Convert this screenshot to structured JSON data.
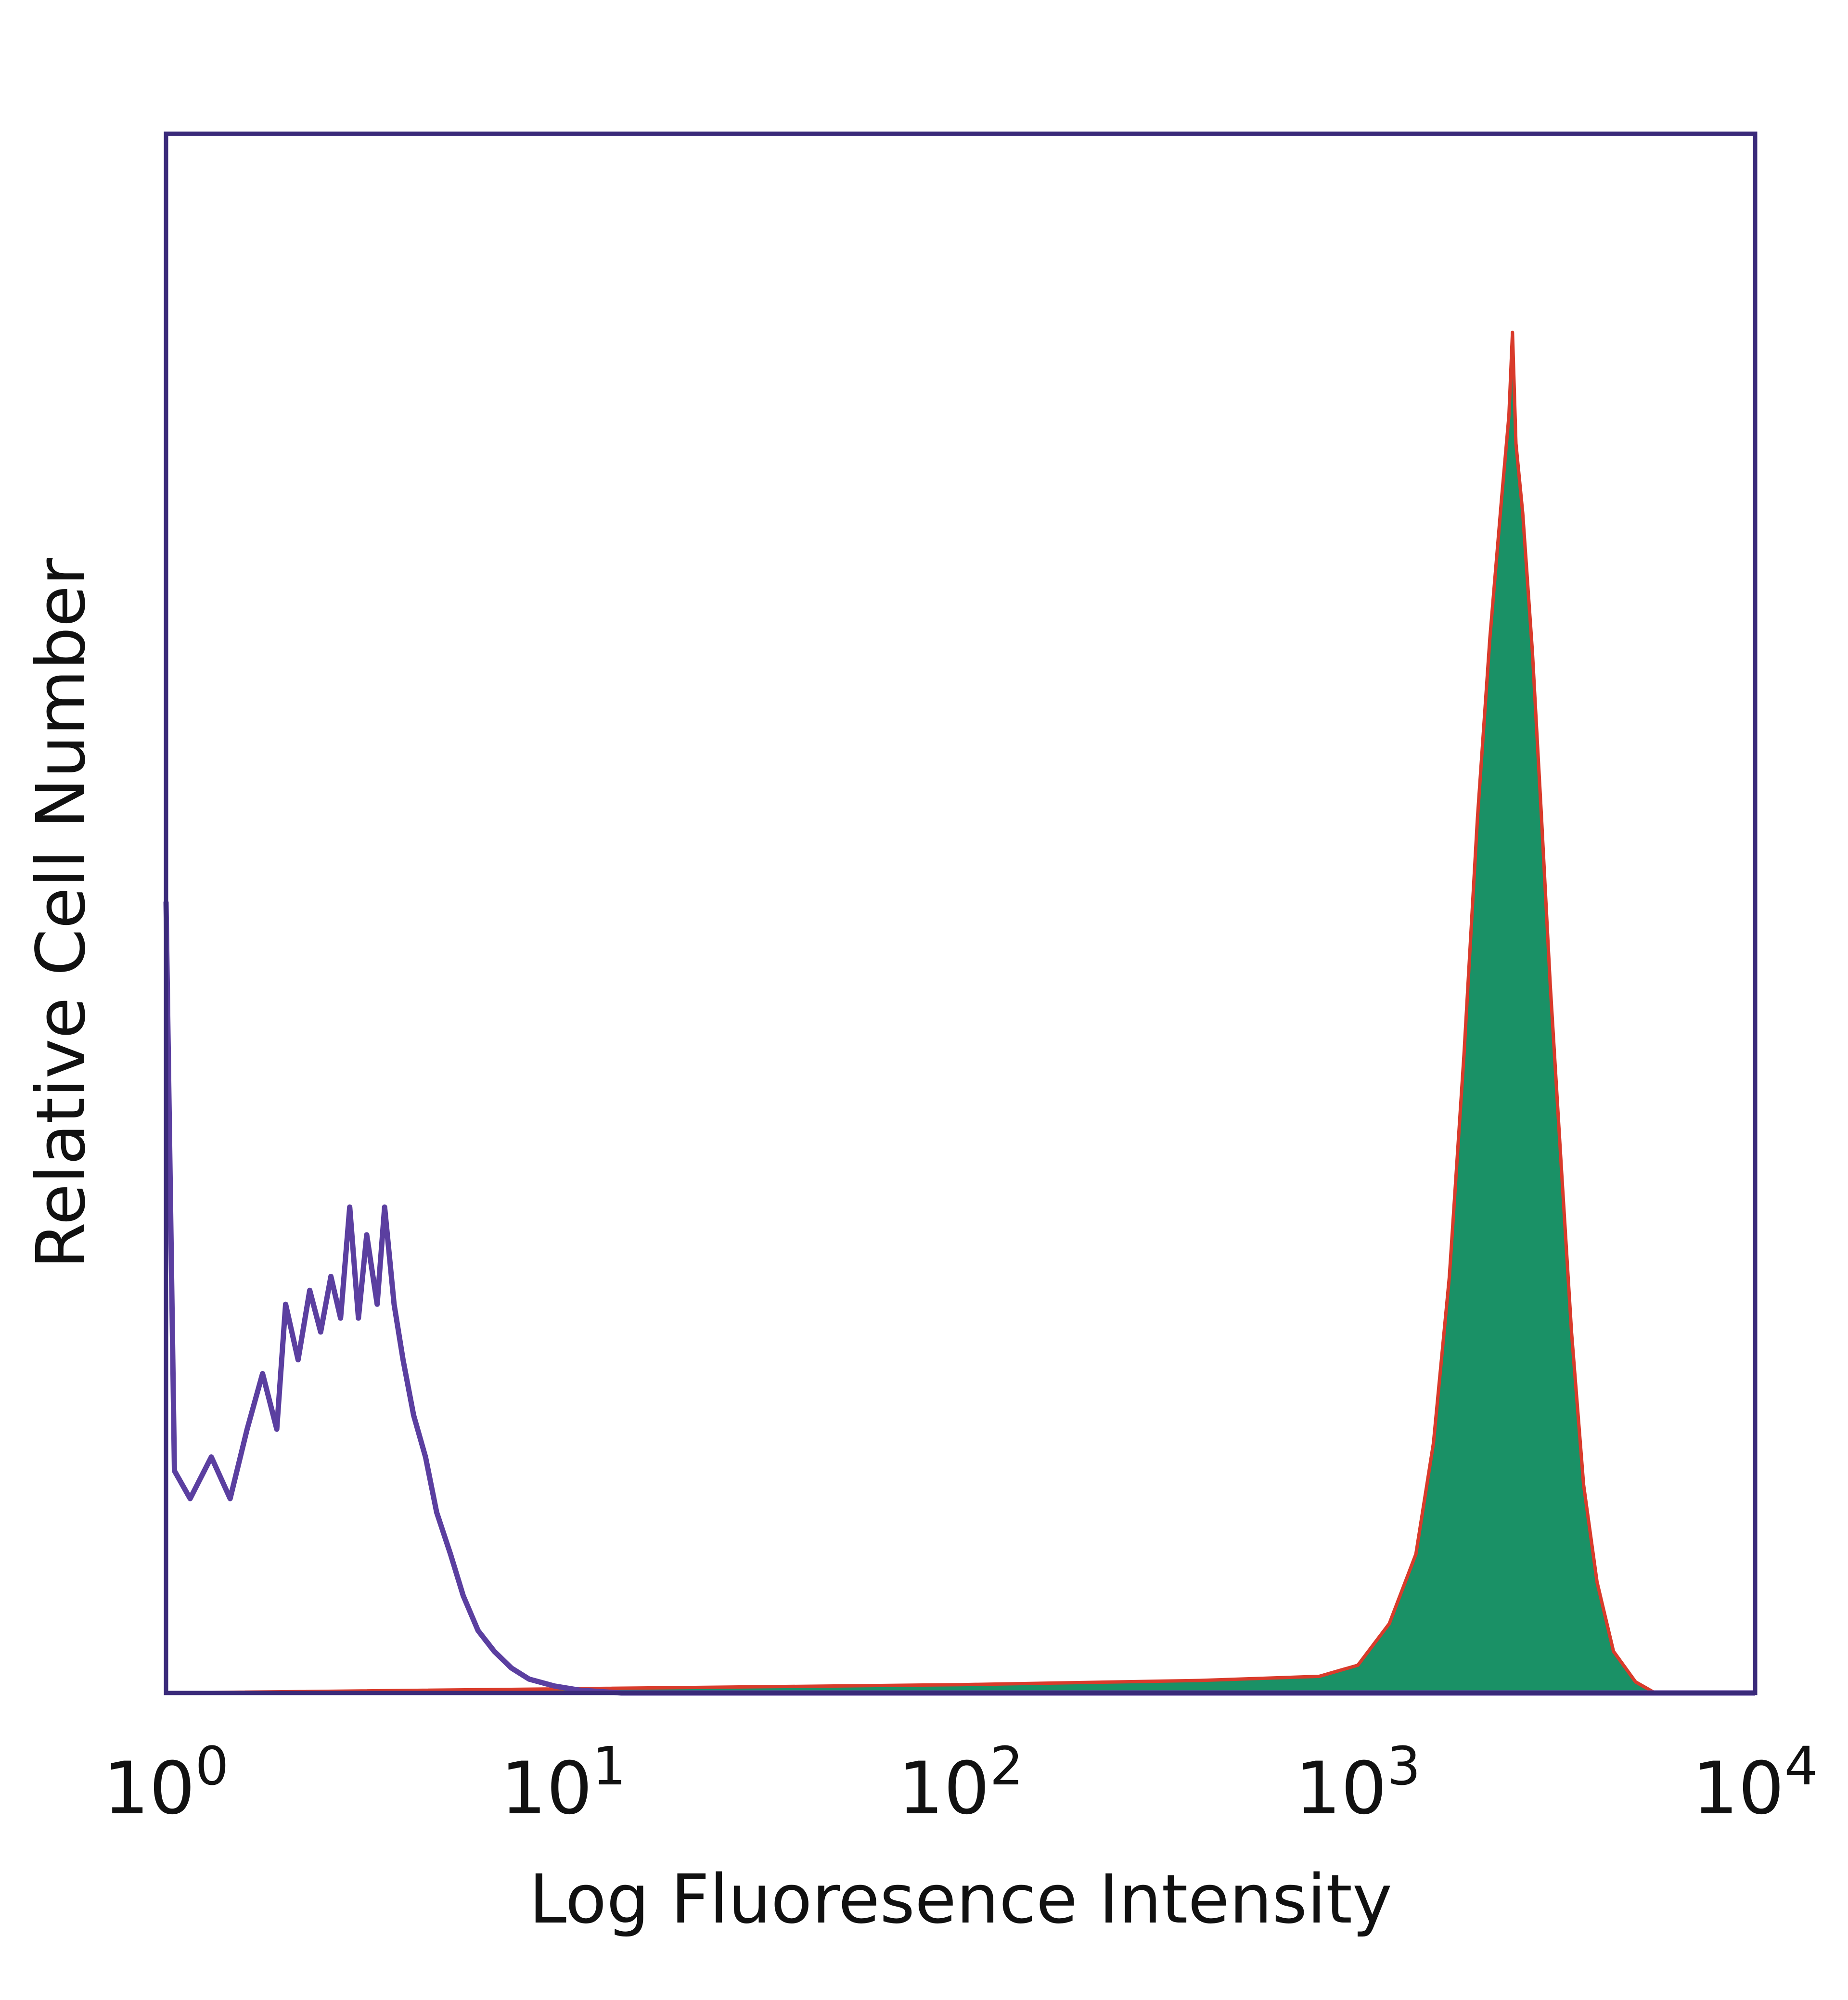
{
  "chart_data": {
    "type": "area",
    "xlabel": "Log Fluoresence Intensity",
    "ylabel": "Relative Cell Number",
    "x_scale": "log",
    "xlim": [
      1,
      10000
    ],
    "ylim": [
      0,
      1
    ],
    "grid": false,
    "x_ticks": [
      {
        "base": "10",
        "exp": "0",
        "value": 1
      },
      {
        "base": "10",
        "exp": "1",
        "value": 10
      },
      {
        "base": "10",
        "exp": "2",
        "value": 100
      },
      {
        "base": "10",
        "exp": "3",
        "value": 1000
      },
      {
        "base": "10",
        "exp": "4",
        "value": 10000
      }
    ],
    "series": [
      {
        "style": "outline",
        "color": "#5b3fa0",
        "points": [
          [
            1.0,
            0.57
          ],
          [
            1.05,
            0.16
          ],
          [
            1.15,
            0.14
          ],
          [
            1.3,
            0.17
          ],
          [
            1.45,
            0.14
          ],
          [
            1.6,
            0.19
          ],
          [
            1.75,
            0.23
          ],
          [
            1.9,
            0.19
          ],
          [
            2.0,
            0.28
          ],
          [
            2.15,
            0.24
          ],
          [
            2.3,
            0.29
          ],
          [
            2.45,
            0.26
          ],
          [
            2.6,
            0.3
          ],
          [
            2.75,
            0.27
          ],
          [
            2.9,
            0.35
          ],
          [
            3.05,
            0.27
          ],
          [
            3.2,
            0.33
          ],
          [
            3.4,
            0.28
          ],
          [
            3.55,
            0.35
          ],
          [
            3.75,
            0.28
          ],
          [
            3.95,
            0.24
          ],
          [
            4.2,
            0.2
          ],
          [
            4.5,
            0.17
          ],
          [
            4.8,
            0.13
          ],
          [
            5.2,
            0.1
          ],
          [
            5.6,
            0.07
          ],
          [
            6.1,
            0.045
          ],
          [
            6.7,
            0.03
          ],
          [
            7.4,
            0.018
          ],
          [
            8.2,
            0.01
          ],
          [
            9.5,
            0.005
          ],
          [
            11,
            0.002
          ],
          [
            14,
            0.0
          ],
          [
            10000,
            0.0
          ]
        ]
      },
      {
        "style": "filled",
        "color": "#d93b2b",
        "fill": "#1a9166",
        "points": [
          [
            1.0,
            0.0
          ],
          [
            100,
            0.006
          ],
          [
            400,
            0.009
          ],
          [
            800,
            0.012
          ],
          [
            1000,
            0.02
          ],
          [
            1200,
            0.05
          ],
          [
            1400,
            0.1
          ],
          [
            1550,
            0.18
          ],
          [
            1700,
            0.3
          ],
          [
            1850,
            0.46
          ],
          [
            2000,
            0.63
          ],
          [
            2150,
            0.76
          ],
          [
            2300,
            0.86
          ],
          [
            2400,
            0.92
          ],
          [
            2450,
            0.98
          ],
          [
            2500,
            0.9
          ],
          [
            2600,
            0.85
          ],
          [
            2750,
            0.75
          ],
          [
            2900,
            0.63
          ],
          [
            3050,
            0.51
          ],
          [
            3250,
            0.38
          ],
          [
            3450,
            0.26
          ],
          [
            3700,
            0.15
          ],
          [
            4000,
            0.08
          ],
          [
            4400,
            0.03
          ],
          [
            5000,
            0.008
          ],
          [
            5600,
            0.0
          ],
          [
            10000,
            0.0
          ]
        ]
      }
    ]
  }
}
